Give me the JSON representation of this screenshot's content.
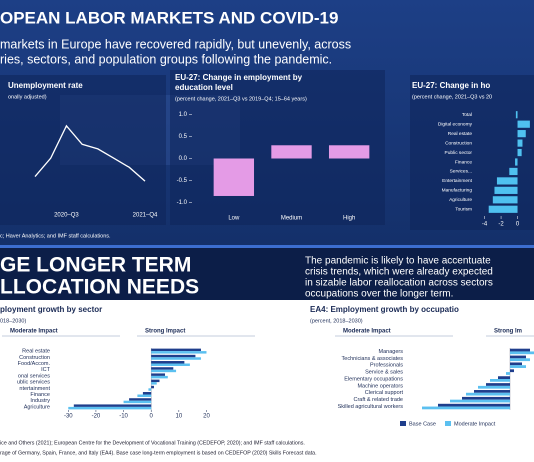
{
  "header": {
    "title": "OPEAN LABOR MARKETS AND COVID-19",
    "subtitle": [
      "markets in Europe have recovered rapidly, but unevenly, across",
      "ries, sectors, and population groups following the pandemic."
    ]
  },
  "chart_data": [
    {
      "type": "line",
      "title": "Unemployment rate",
      "subtitle": "onally adjusted)",
      "categories": [
        null,
        null,
        "2020–Q3",
        null,
        null,
        null,
        null,
        "2021–Q4"
      ],
      "values": [
        6.6,
        7.0,
        7.7,
        7.3,
        7.2,
        7.0,
        6.8,
        6.5
      ],
      "ylim": [
        6.2,
        8.0
      ],
      "color": "#ffffff"
    },
    {
      "type": "bar",
      "title": [
        "EU-27: Change in employment by",
        "education level"
      ],
      "subtitle": "(percent change, 2021–Q3 vs 2019–Q4; 15–64 years)",
      "categories": [
        "Low",
        "Medium",
        "High"
      ],
      "values": [
        -0.85,
        0.3,
        0.3
      ],
      "color": "#e49be6",
      "ylim": [
        -1.1,
        1.1
      ],
      "yticks": [
        {
          "value": 1,
          "label": "1.0"
        },
        {
          "value": 0.5,
          "label": "0.5"
        },
        {
          "value": 0,
          "label": "0.0"
        },
        {
          "value": -0.5,
          "label": "-0.5"
        },
        {
          "value": -1,
          "label": "-1.0"
        }
      ]
    },
    {
      "type": "hbar",
      "title": "EU-27: Change in ho",
      "subtitle": "(percent change, 2021–Q3 vs 20",
      "categories": [
        "Total",
        "Digital economy",
        "Real estate",
        "Construction",
        "Public sector",
        "Finance",
        "Services...",
        "Entertainment",
        "Manufacturing",
        "Agriculture",
        "Tourism"
      ],
      "values": [
        -0.2,
        1.5,
        1.0,
        0.6,
        0.5,
        -0.3,
        -1.0,
        -2.5,
        -2.8,
        -3.0,
        -3.5
      ],
      "color": "#4fc1f0",
      "xlim": [
        -4.8,
        2
      ],
      "xticks": [
        -4,
        -2,
        0
      ]
    },
    {
      "type": "grouped-hbar",
      "title": "ployment growth by sector",
      "subtitle": "018–2030)",
      "panel_labels": [
        "Moderate Impact",
        "Strong Impact"
      ],
      "categories": [
        "Real estate",
        "Construction",
        "Food/Accom.",
        "ICT",
        "onal services",
        "ublic services",
        "ntertainment",
        "Finance",
        "Industry",
        "Agriculture"
      ],
      "series": [
        {
          "color": "#1f3e8c",
          "values": [
            18,
            16,
            12,
            8,
            5,
            3,
            1,
            -3,
            -8,
            -28
          ]
        },
        {
          "color": "#5bc0f0",
          "values": [
            20,
            18,
            14,
            9,
            6,
            2,
            -1,
            -5,
            -10,
            -30
          ]
        }
      ],
      "xlim": [
        -33,
        22
      ],
      "xticks": [
        -30,
        -20,
        -10,
        0,
        10,
        20
      ]
    },
    {
      "type": "grouped-hbar",
      "title": "EA4: Employment growth by occupatio",
      "subtitle": "(percent, 2018–2030)",
      "panel_labels": [
        "Moderate Impact",
        "Strong Im"
      ],
      "categories": [
        "Managers",
        "Technicians & associates",
        "Professionals",
        "Service & sales",
        "Elementary occupations",
        "Machine operators",
        "Clerical support",
        "Craft & related trade",
        "Skilled agricultural workers"
      ],
      "series": [
        {
          "name": "Base Case",
          "color": "#1f3e8c",
          "values": [
            5,
            4,
            3,
            1,
            -3,
            -6,
            -9,
            -12,
            -18
          ]
        },
        {
          "name": "Moderate Impact",
          "color": "#5bc0f0",
          "values": [
            6,
            5,
            4,
            -1,
            -5,
            -8,
            -11,
            -15,
            -22
          ]
        }
      ],
      "xlim": [
        -25,
        6
      ]
    }
  ],
  "source_top": "c; Haver Analytics; and IMF staff calculations.",
  "section2": {
    "title": [
      "GE LONGER TERM",
      "LLOCATION NEEDS"
    ],
    "text": [
      "The pandemic is likely to have accentuate",
      "crisis trends, which were already expected",
      "in sizable labor reallocation across sectors",
      "occupations over the longer term."
    ]
  },
  "footer": [
    "ice and Others (2021); European Centre for the Development of Vocational Training (CEDEFOP, 2020); and IMF staff calculations.",
    "rage of Germany, Spain, France, and Italy (EA4). Base case long-term employment is based on CEDEFOP (2020) Skills Forecast data."
  ]
}
